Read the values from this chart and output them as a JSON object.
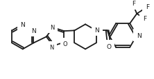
{
  "background_color": "#ffffff",
  "line_color": "#1a1a1a",
  "line_width": 1.3,
  "font_size": 6.5,
  "fig_width": 2.22,
  "fig_height": 1.16,
  "dpi": 100,
  "xlim": [
    0,
    220
  ],
  "ylim": [
    0,
    108
  ]
}
